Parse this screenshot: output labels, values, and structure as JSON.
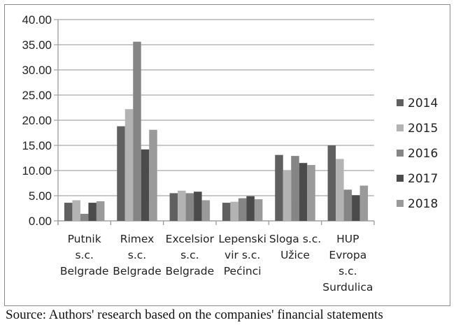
{
  "chart_data": {
    "type": "bar",
    "title": "",
    "xlabel": "",
    "ylabel": "",
    "ylim": [
      0,
      40
    ],
    "yticks": [
      "0.00",
      "5.00",
      "10.00",
      "15.00",
      "20.00",
      "25.00",
      "30.00",
      "35.00",
      "40.00"
    ],
    "grid": true,
    "legend_position": "right",
    "categories": [
      [
        "Putnik",
        "s.c.",
        "Belgrade"
      ],
      [
        "Rimex",
        "s.c.",
        "Belgrade"
      ],
      [
        "Excelsior",
        "s.c.",
        "Belgrade"
      ],
      [
        "Lepenski",
        "vir s.c.",
        "Pećinci"
      ],
      [
        "Sloga s.c.",
        "Užice"
      ],
      [
        "HUP",
        "Evropa",
        "s.c.",
        "Surdulica"
      ]
    ],
    "series": [
      {
        "name": "2014",
        "color": "#606060",
        "values": [
          3.6,
          18.8,
          5.5,
          3.6,
          13.1,
          15.0
        ]
      },
      {
        "name": "2015",
        "color": "#b3b3b3",
        "values": [
          4.1,
          22.2,
          6.0,
          3.8,
          10.0,
          12.3
        ]
      },
      {
        "name": "2016",
        "color": "#858585",
        "values": [
          1.4,
          35.6,
          5.5,
          4.5,
          12.9,
          6.2
        ]
      },
      {
        "name": "2017",
        "color": "#4b4b4b",
        "values": [
          3.6,
          14.2,
          5.8,
          4.9,
          11.5,
          5.1
        ]
      },
      {
        "name": "2018",
        "color": "#9a9a9a",
        "values": [
          3.9,
          18.1,
          4.1,
          4.3,
          11.1,
          7.0
        ]
      }
    ]
  },
  "source": "Source: Authors' research based on the companies' financial statements"
}
